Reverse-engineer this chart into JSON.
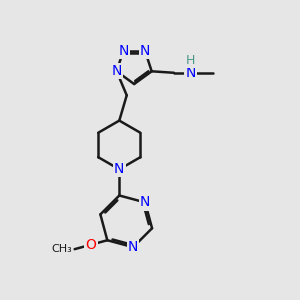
{
  "bg_color": "#e6e6e6",
  "bond_color": "#1a1a1a",
  "N_color": "#0000ff",
  "O_color": "#ff0000",
  "H_color": "#4a9a8a",
  "C_color": "#1a1a1a",
  "line_width": 1.8,
  "font_size": 10,
  "fig_size": [
    3.0,
    3.0
  ],
  "dpi": 100,
  "xlim": [
    0,
    10
  ],
  "ylim": [
    0,
    10
  ]
}
